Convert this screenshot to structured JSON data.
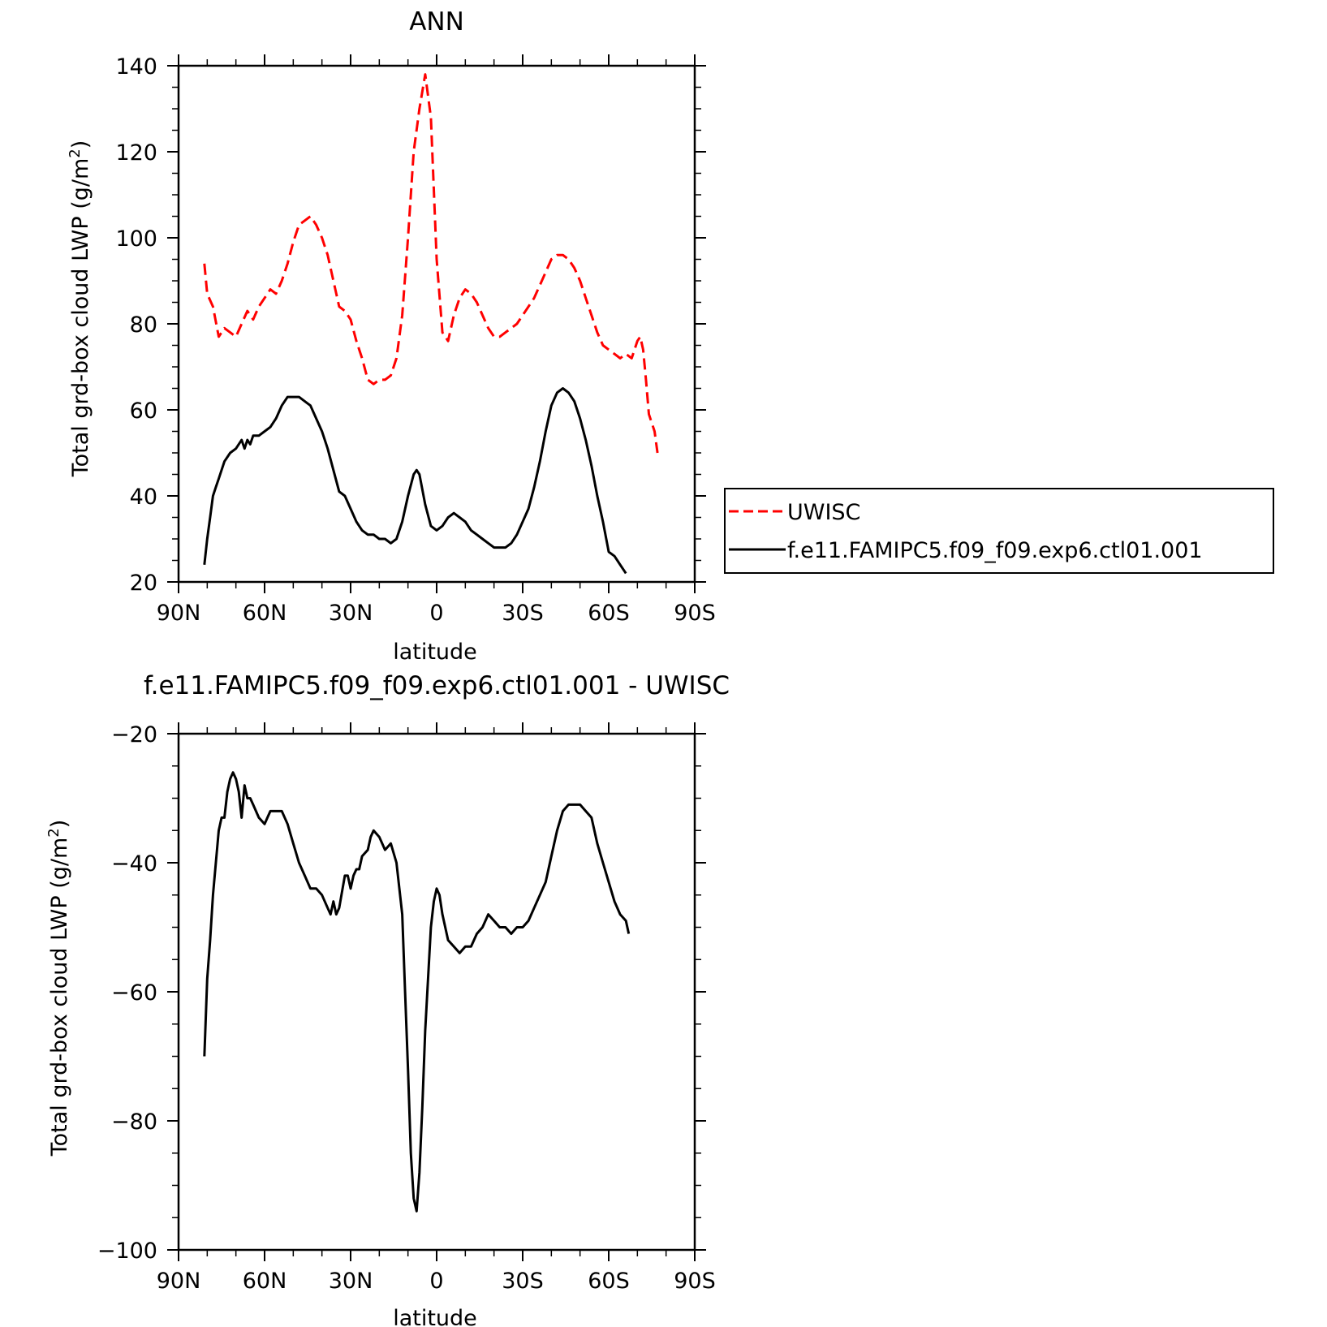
{
  "chart_data": [
    {
      "type": "line",
      "title": "ANN",
      "xlabel": "latitude",
      "ylabel": "Total grd-box cloud LWP (g/m²)",
      "ylabel_main": "Total grd-box cloud LWP (g/m",
      "ylabel_sup": "2",
      "ylabel_close": ")",
      "xlim": [
        90,
        -90
      ],
      "ylim": [
        20,
        140
      ],
      "xticks": [
        90,
        60,
        30,
        0,
        -30,
        -60,
        -90
      ],
      "xtick_labels": [
        "90N",
        "60N",
        "30N",
        "0",
        "30S",
        "60S",
        "90S"
      ],
      "yticks": [
        20,
        40,
        60,
        80,
        100,
        120,
        140
      ],
      "ytick_labels": [
        "20",
        "40",
        "60",
        "80",
        "100",
        "120",
        "140"
      ],
      "legend": {
        "placement": "right",
        "entries": [
          "UWISC",
          "f.e11.FAMIPC5.f09_f09.exp6.ctl01.001"
        ]
      },
      "series": [
        {
          "name": "UWISC",
          "color": "#ff0000",
          "dash": true,
          "points": [
            [
              81,
              94
            ],
            [
              80,
              87
            ],
            [
              78,
              84
            ],
            [
              76,
              77
            ],
            [
              74,
              79
            ],
            [
              72,
              78
            ],
            [
              70,
              77
            ],
            [
              68,
              80
            ],
            [
              66,
              83
            ],
            [
              64,
              81
            ],
            [
              62,
              84
            ],
            [
              60,
              86
            ],
            [
              58,
              88
            ],
            [
              56,
              87
            ],
            [
              54,
              90
            ],
            [
              52,
              94
            ],
            [
              50,
              99
            ],
            [
              48,
              103
            ],
            [
              46,
              104
            ],
            [
              44,
              105
            ],
            [
              42,
              103
            ],
            [
              40,
              100
            ],
            [
              38,
              96
            ],
            [
              36,
              90
            ],
            [
              34,
              84
            ],
            [
              32,
              83
            ],
            [
              30,
              81
            ],
            [
              28,
              76
            ],
            [
              26,
              72
            ],
            [
              24,
              67
            ],
            [
              22,
              66
            ],
            [
              20,
              67
            ],
            [
              18,
              67
            ],
            [
              16,
              68
            ],
            [
              14,
              72
            ],
            [
              12,
              82
            ],
            [
              10,
              100
            ],
            [
              8,
              120
            ],
            [
              6,
              130
            ],
            [
              4,
              138
            ],
            [
              2,
              128
            ],
            [
              0,
              95
            ],
            [
              -2,
              78
            ],
            [
              -4,
              76
            ],
            [
              -6,
              82
            ],
            [
              -8,
              86
            ],
            [
              -10,
              88
            ],
            [
              -12,
              87
            ],
            [
              -14,
              85
            ],
            [
              -16,
              82
            ],
            [
              -18,
              79
            ],
            [
              -20,
              77
            ],
            [
              -22,
              77
            ],
            [
              -24,
              78
            ],
            [
              -26,
              79
            ],
            [
              -28,
              80
            ],
            [
              -30,
              82
            ],
            [
              -32,
              84
            ],
            [
              -34,
              86
            ],
            [
              -36,
              89
            ],
            [
              -38,
              92
            ],
            [
              -40,
              95
            ],
            [
              -42,
              96
            ],
            [
              -44,
              96
            ],
            [
              -46,
              95
            ],
            [
              -48,
              93
            ],
            [
              -50,
              90
            ],
            [
              -52,
              86
            ],
            [
              -54,
              82
            ],
            [
              -56,
              78
            ],
            [
              -58,
              75
            ],
            [
              -60,
              74
            ],
            [
              -62,
              73
            ],
            [
              -64,
              72
            ],
            [
              -66,
              73
            ],
            [
              -68,
              72
            ],
            [
              -70,
              76
            ],
            [
              -71,
              77
            ],
            [
              -72,
              74
            ],
            [
              -73,
              67
            ],
            [
              -74,
              59
            ],
            [
              -75,
              57
            ],
            [
              -76,
              55
            ],
            [
              -77,
              50
            ]
          ]
        },
        {
          "name": "f.e11.FAMIPC5.f09_f09.exp6.ctl01.001",
          "color": "#000000",
          "dash": false,
          "points": [
            [
              81,
              24
            ],
            [
              80,
              30
            ],
            [
              79,
              35
            ],
            [
              78,
              40
            ],
            [
              77,
              42
            ],
            [
              76,
              44
            ],
            [
              75,
              46
            ],
            [
              74,
              48
            ],
            [
              72,
              50
            ],
            [
              70,
              51
            ],
            [
              68,
              53
            ],
            [
              67,
              51
            ],
            [
              66,
              53
            ],
            [
              65,
              52
            ],
            [
              64,
              54
            ],
            [
              62,
              54
            ],
            [
              60,
              55
            ],
            [
              58,
              56
            ],
            [
              56,
              58
            ],
            [
              54,
              61
            ],
            [
              52,
              63
            ],
            [
              50,
              63
            ],
            [
              48,
              63
            ],
            [
              46,
              62
            ],
            [
              44,
              61
            ],
            [
              42,
              58
            ],
            [
              40,
              55
            ],
            [
              38,
              51
            ],
            [
              36,
              46
            ],
            [
              34,
              41
            ],
            [
              32,
              40
            ],
            [
              30,
              37
            ],
            [
              28,
              34
            ],
            [
              26,
              32
            ],
            [
              24,
              31
            ],
            [
              22,
              31
            ],
            [
              20,
              30
            ],
            [
              18,
              30
            ],
            [
              16,
              29
            ],
            [
              14,
              30
            ],
            [
              12,
              34
            ],
            [
              10,
              40
            ],
            [
              8,
              45
            ],
            [
              7,
              46
            ],
            [
              6,
              45
            ],
            [
              4,
              38
            ],
            [
              2,
              33
            ],
            [
              0,
              32
            ],
            [
              -2,
              33
            ],
            [
              -4,
              35
            ],
            [
              -6,
              36
            ],
            [
              -8,
              35
            ],
            [
              -10,
              34
            ],
            [
              -12,
              32
            ],
            [
              -14,
              31
            ],
            [
              -16,
              30
            ],
            [
              -18,
              29
            ],
            [
              -20,
              28
            ],
            [
              -22,
              28
            ],
            [
              -24,
              28
            ],
            [
              -26,
              29
            ],
            [
              -28,
              31
            ],
            [
              -30,
              34
            ],
            [
              -32,
              37
            ],
            [
              -34,
              42
            ],
            [
              -36,
              48
            ],
            [
              -38,
              55
            ],
            [
              -40,
              61
            ],
            [
              -42,
              64
            ],
            [
              -44,
              65
            ],
            [
              -46,
              64
            ],
            [
              -48,
              62
            ],
            [
              -50,
              58
            ],
            [
              -52,
              53
            ],
            [
              -54,
              47
            ],
            [
              -56,
              40
            ],
            [
              -58,
              34
            ],
            [
              -60,
              27
            ],
            [
              -62,
              26
            ],
            [
              -64,
              24
            ],
            [
              -66,
              22
            ]
          ]
        }
      ]
    },
    {
      "type": "line",
      "title": "f.e11.FAMIPC5.f09_f09.exp6.ctl01.001  -  UWISC",
      "xlabel": "latitude",
      "ylabel": "Total grd-box cloud LWP (g/m²)",
      "ylabel_main": "Total grd-box cloud LWP (g/m",
      "ylabel_sup": "2",
      "ylabel_close": ")",
      "xlim": [
        90,
        -90
      ],
      "ylim": [
        -100,
        -20
      ],
      "xticks": [
        90,
        60,
        30,
        0,
        -30,
        -60,
        -90
      ],
      "xtick_labels": [
        "90N",
        "60N",
        "30N",
        "0",
        "30S",
        "60S",
        "90S"
      ],
      "yticks": [
        -100,
        -80,
        -60,
        -40,
        -20
      ],
      "ytick_labels": [
        "−100",
        "−80",
        "−60",
        "−40",
        "−20"
      ],
      "series": [
        {
          "color": "#000000",
          "dash": false,
          "points": [
            [
              81,
              -70
            ],
            [
              80,
              -58
            ],
            [
              79,
              -52
            ],
            [
              78,
              -45
            ],
            [
              76,
              -35
            ],
            [
              75,
              -33
            ],
            [
              74,
              -33
            ],
            [
              73,
              -29
            ],
            [
              72,
              -27
            ],
            [
              71,
              -26
            ],
            [
              70,
              -27
            ],
            [
              69,
              -29
            ],
            [
              68,
              -33
            ],
            [
              67,
              -28
            ],
            [
              66,
              -30
            ],
            [
              65,
              -30
            ],
            [
              64,
              -31
            ],
            [
              63,
              -32
            ],
            [
              62,
              -33
            ],
            [
              60,
              -34
            ],
            [
              59,
              -33
            ],
            [
              58,
              -32
            ],
            [
              56,
              -32
            ],
            [
              54,
              -32
            ],
            [
              52,
              -34
            ],
            [
              50,
              -37
            ],
            [
              48,
              -40
            ],
            [
              46,
              -42
            ],
            [
              44,
              -44
            ],
            [
              42,
              -44
            ],
            [
              40,
              -45
            ],
            [
              38,
              -47
            ],
            [
              37,
              -48
            ],
            [
              36,
              -46
            ],
            [
              35,
              -48
            ],
            [
              34,
              -47
            ],
            [
              32,
              -42
            ],
            [
              31,
              -42
            ],
            [
              30,
              -44
            ],
            [
              29,
              -42
            ],
            [
              28,
              -41
            ],
            [
              27,
              -41
            ],
            [
              26,
              -39
            ],
            [
              24,
              -38
            ],
            [
              23,
              -36
            ],
            [
              22,
              -35
            ],
            [
              20,
              -36
            ],
            [
              18,
              -38
            ],
            [
              16,
              -37
            ],
            [
              14,
              -40
            ],
            [
              12,
              -48
            ],
            [
              11,
              -60
            ],
            [
              10,
              -72
            ],
            [
              9,
              -85
            ],
            [
              8,
              -92
            ],
            [
              7,
              -94
            ],
            [
              6,
              -88
            ],
            [
              5,
              -78
            ],
            [
              4,
              -66
            ],
            [
              3,
              -58
            ],
            [
              2,
              -50
            ],
            [
              1,
              -46
            ],
            [
              0,
              -44
            ],
            [
              -1,
              -45
            ],
            [
              -2,
              -48
            ],
            [
              -3,
              -50
            ],
            [
              -4,
              -52
            ],
            [
              -6,
              -53
            ],
            [
              -8,
              -54
            ],
            [
              -10,
              -53
            ],
            [
              -12,
              -53
            ],
            [
              -14,
              -51
            ],
            [
              -16,
              -50
            ],
            [
              -18,
              -48
            ],
            [
              -20,
              -49
            ],
            [
              -22,
              -50
            ],
            [
              -24,
              -50
            ],
            [
              -26,
              -51
            ],
            [
              -28,
              -50
            ],
            [
              -30,
              -50
            ],
            [
              -32,
              -49
            ],
            [
              -34,
              -47
            ],
            [
              -36,
              -45
            ],
            [
              -38,
              -43
            ],
            [
              -40,
              -39
            ],
            [
              -42,
              -35
            ],
            [
              -44,
              -32
            ],
            [
              -46,
              -31
            ],
            [
              -48,
              -31
            ],
            [
              -50,
              -31
            ],
            [
              -52,
              -32
            ],
            [
              -54,
              -33
            ],
            [
              -56,
              -37
            ],
            [
              -58,
              -40
            ],
            [
              -60,
              -43
            ],
            [
              -62,
              -46
            ],
            [
              -64,
              -48
            ],
            [
              -66,
              -49
            ],
            [
              -67,
              -51
            ]
          ]
        }
      ]
    }
  ]
}
